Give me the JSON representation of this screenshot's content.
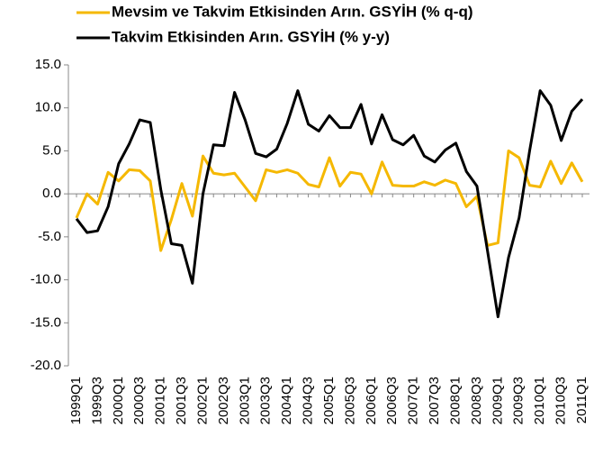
{
  "chart_data": {
    "type": "line",
    "categories": [
      "1999Q1",
      null,
      "1999Q3",
      null,
      "2000Q1",
      null,
      "2000Q3",
      null,
      "2001Q1",
      null,
      "2001Q3",
      null,
      "2002Q1",
      null,
      "2002Q3",
      null,
      "2003Q1",
      null,
      "2003Q3",
      null,
      "2004Q1",
      null,
      "2004Q3",
      null,
      "2005Q1",
      null,
      "2005Q3",
      null,
      "2006Q1",
      null,
      "2006Q3",
      null,
      "2007Q1",
      null,
      "2007Q3",
      null,
      "2008Q1",
      null,
      "2008Q3",
      null,
      "2009Q1",
      null,
      "2009Q3",
      null,
      "2010Q1",
      null,
      "2010Q3",
      null,
      "2011Q1"
    ],
    "series": [
      {
        "name": "Mevsim ve Takvim Etkisinden Arın. GSYİH (% q-q)",
        "color": "#f5b800",
        "values": [
          -2.8,
          0.0,
          -1.2,
          2.5,
          1.5,
          2.8,
          2.7,
          1.5,
          -6.6,
          -3.0,
          1.2,
          -2.6,
          4.4,
          2.4,
          2.2,
          2.4,
          0.8,
          -0.8,
          2.8,
          2.5,
          2.8,
          2.4,
          1.1,
          0.8,
          4.2,
          0.9,
          2.5,
          2.3,
          0.0,
          3.7,
          1.0,
          0.9,
          0.9,
          1.4,
          1.0,
          1.6,
          1.2,
          -1.5,
          -0.3,
          -6.0,
          -5.7,
          5.0,
          4.2,
          1.0,
          0.8,
          3.8,
          1.2,
          3.6,
          1.4
        ]
      },
      {
        "name": "Takvim Etkisinden Arın. GSYİH (% y-y)",
        "color": "#000000",
        "values": [
          -2.9,
          -4.5,
          -4.3,
          -1.5,
          3.5,
          5.8,
          8.6,
          8.3,
          0.5,
          -5.8,
          -6.0,
          -10.4,
          0.0,
          5.7,
          5.6,
          11.8,
          8.6,
          4.7,
          4.3,
          5.2,
          8.2,
          12.0,
          8.1,
          7.3,
          9.1,
          7.7,
          7.7,
          10.4,
          5.8,
          9.2,
          6.3,
          5.7,
          6.8,
          4.4,
          3.7,
          5.1,
          5.9,
          2.6,
          0.9,
          -6.6,
          -14.3,
          -7.4,
          -2.8,
          5.0,
          12.0,
          10.3,
          6.2,
          9.6,
          11.0
        ]
      }
    ],
    "ylim": [
      -20,
      15
    ],
    "yticks": [
      {
        "value": -20,
        "label": "-20.0"
      },
      {
        "value": -15,
        "label": "-15.0"
      },
      {
        "value": -10,
        "label": "-10.0"
      },
      {
        "value": -5,
        "label": "-5.0"
      },
      {
        "value": 0,
        "label": "0.0"
      },
      {
        "value": 5,
        "label": "5.0"
      },
      {
        "value": 10,
        "label": "10.0"
      },
      {
        "value": 15,
        "label": "15.0"
      }
    ],
    "legend": "top",
    "grid": false
  }
}
